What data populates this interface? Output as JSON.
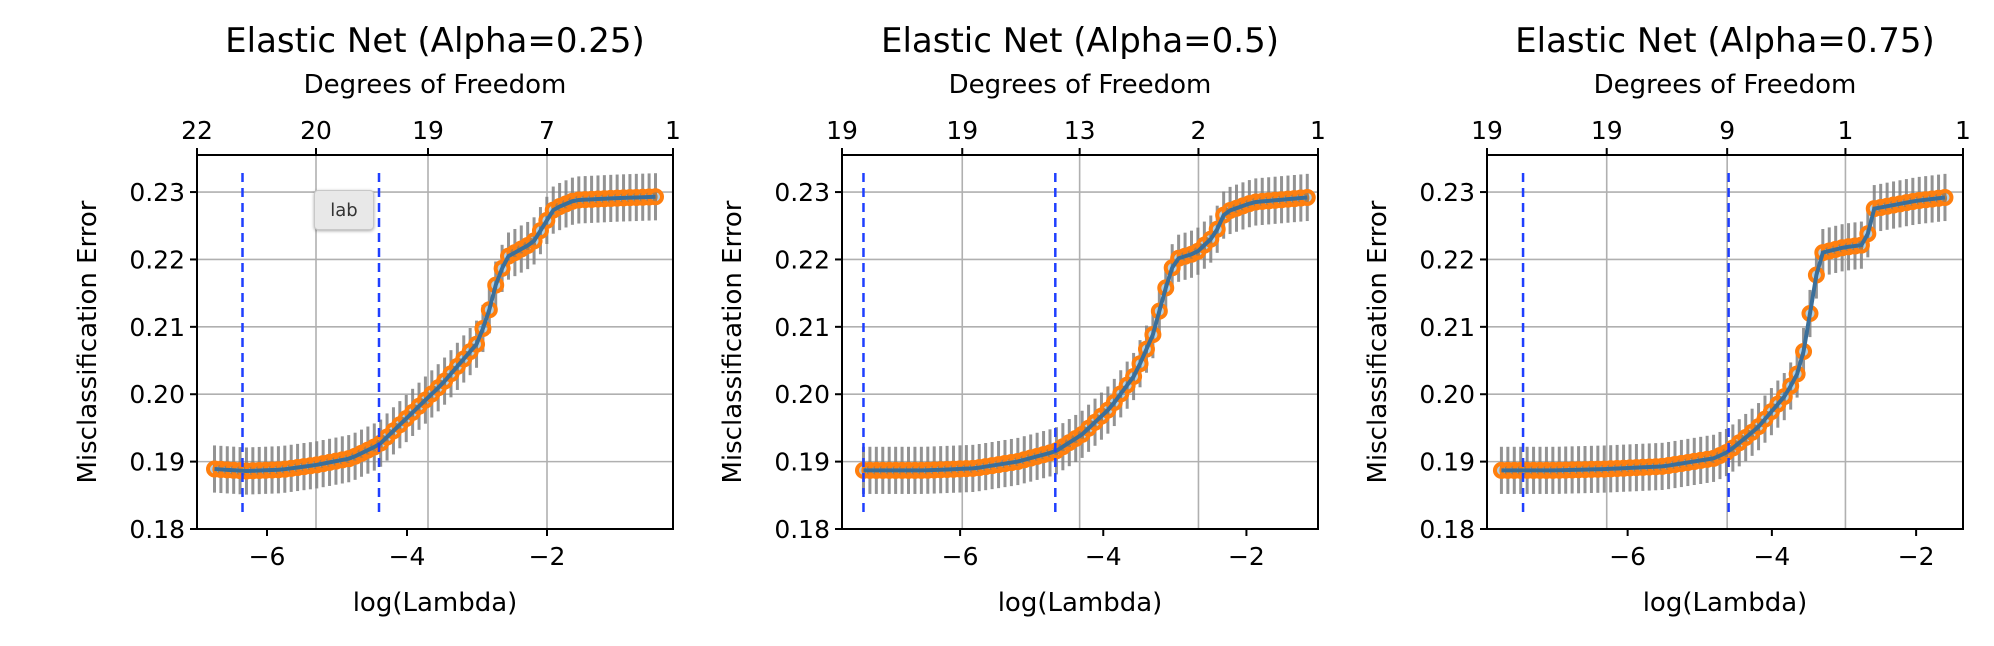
{
  "tooltip": {
    "text": "lab"
  },
  "chart_data": [
    {
      "type": "line",
      "title": "Elastic Net (Alpha=0.25)",
      "xlabel": "log(Lambda)",
      "ylabel": "Misclassification Error",
      "top_xlabel": "Degrees of Freedom",
      "xlim": [
        -7.0,
        -0.2
      ],
      "ylim": [
        0.18,
        0.2355
      ],
      "xticks": [
        -6,
        -4,
        -2
      ],
      "xtick_labels": [
        "−6",
        "−4",
        "−2"
      ],
      "yticks": [
        0.18,
        0.19,
        0.2,
        0.21,
        0.22,
        0.23
      ],
      "ytick_labels": [
        "0.18",
        "0.19",
        "0.20",
        "0.21",
        "0.22",
        "0.23"
      ],
      "top_ticks": [
        -7.0,
        -5.3,
        -3.7,
        -2.0,
        -0.2
      ],
      "top_tick_labels": [
        "22",
        "20",
        "19",
        "7",
        "1"
      ],
      "min_line": -6.35,
      "se_line": -4.4,
      "x_start": -6.75,
      "x_end": -0.45,
      "n_points": 70,
      "err_half": 0.0035,
      "curve": [
        [
          -6.75,
          0.1889
        ],
        [
          -6.3,
          0.1886
        ],
        [
          -5.8,
          0.1888
        ],
        [
          -5.3,
          0.1895
        ],
        [
          -4.8,
          0.1905
        ],
        [
          -4.4,
          0.1925
        ],
        [
          -4.0,
          0.1965
        ],
        [
          -3.5,
          0.2015
        ],
        [
          -3.0,
          0.2075
        ],
        [
          -2.85,
          0.2115
        ],
        [
          -2.7,
          0.2175
        ],
        [
          -2.55,
          0.2205
        ],
        [
          -2.2,
          0.2225
        ],
        [
          -1.9,
          0.2275
        ],
        [
          -1.6,
          0.2288
        ],
        [
          -1.0,
          0.2291
        ],
        [
          -0.45,
          0.2293
        ]
      ],
      "grid": true,
      "series": [
        {
          "name": "",
          "role": "cv-mean-with-error-bars"
        }
      ]
    },
    {
      "type": "line",
      "title": "Elastic Net (Alpha=0.5)",
      "xlabel": "log(Lambda)",
      "ylabel": "Misclassification Error",
      "top_xlabel": "Degrees of Freedom",
      "xlim": [
        -7.65,
        -1.0
      ],
      "ylim": [
        0.18,
        0.2355
      ],
      "xticks": [
        -6,
        -4,
        -2
      ],
      "xtick_labels": [
        "−6",
        "−4",
        "−2"
      ],
      "yticks": [
        0.18,
        0.19,
        0.2,
        0.21,
        0.22,
        0.23
      ],
      "ytick_labels": [
        "0.18",
        "0.19",
        "0.20",
        "0.21",
        "0.22",
        "0.23"
      ],
      "top_ticks": [
        -7.65,
        -5.97,
        -4.33,
        -2.67,
        -1.0
      ],
      "top_tick_labels": [
        "19",
        "19",
        "13",
        "2",
        "1"
      ],
      "min_line": -7.35,
      "se_line": -4.67,
      "x_start": -7.35,
      "x_end": -1.15,
      "n_points": 70,
      "err_half": 0.0035,
      "curve": [
        [
          -7.35,
          0.1887
        ],
        [
          -6.5,
          0.1887
        ],
        [
          -5.8,
          0.189
        ],
        [
          -5.2,
          0.19
        ],
        [
          -4.67,
          0.1915
        ],
        [
          -4.3,
          0.194
        ],
        [
          -3.9,
          0.198
        ],
        [
          -3.55,
          0.203
        ],
        [
          -3.3,
          0.209
        ],
        [
          -3.15,
          0.215
        ],
        [
          -3.0,
          0.22
        ],
        [
          -2.7,
          0.221
        ],
        [
          -2.45,
          0.2235
        ],
        [
          -2.3,
          0.227
        ],
        [
          -1.9,
          0.2285
        ],
        [
          -1.15,
          0.2292
        ]
      ],
      "grid": true,
      "series": [
        {
          "name": "",
          "role": "cv-mean-with-error-bars"
        }
      ]
    },
    {
      "type": "line",
      "title": "Elastic Net (Alpha=0.75)",
      "xlabel": "log(Lambda)",
      "ylabel": "Misclassification Error",
      "top_xlabel": "Degrees of Freedom",
      "xlim": [
        -7.95,
        -1.35
      ],
      "ylim": [
        0.18,
        0.2355
      ],
      "xticks": [
        -6,
        -4,
        -2
      ],
      "xtick_labels": [
        "−6",
        "−4",
        "−2"
      ],
      "yticks": [
        0.18,
        0.19,
        0.2,
        0.21,
        0.22,
        0.23
      ],
      "ytick_labels": [
        "0.18",
        "0.19",
        "0.20",
        "0.21",
        "0.22",
        "0.23"
      ],
      "top_ticks": [
        -7.95,
        -6.29,
        -4.62,
        -2.98,
        -1.35
      ],
      "top_tick_labels": [
        "19",
        "19",
        "9",
        "1",
        "1"
      ],
      "min_line": -7.45,
      "se_line": -4.6,
      "x_start": -7.75,
      "x_end": -1.6,
      "n_points": 70,
      "err_half": 0.0035,
      "curve": [
        [
          -7.75,
          0.1887
        ],
        [
          -7.0,
          0.1887
        ],
        [
          -6.3,
          0.1889
        ],
        [
          -5.5,
          0.1893
        ],
        [
          -4.8,
          0.1905
        ],
        [
          -4.6,
          0.1915
        ],
        [
          -4.2,
          0.195
        ],
        [
          -3.8,
          0.2
        ],
        [
          -3.6,
          0.204
        ],
        [
          -3.5,
          0.21
        ],
        [
          -3.4,
          0.217
        ],
        [
          -3.3,
          0.221
        ],
        [
          -3.0,
          0.2218
        ],
        [
          -2.7,
          0.2222
        ],
        [
          -2.6,
          0.2275
        ],
        [
          -2.0,
          0.2287
        ],
        [
          -1.6,
          0.2292
        ]
      ],
      "grid": true,
      "series": [
        {
          "name": "",
          "role": "cv-mean-with-error-bars"
        }
      ]
    }
  ]
}
